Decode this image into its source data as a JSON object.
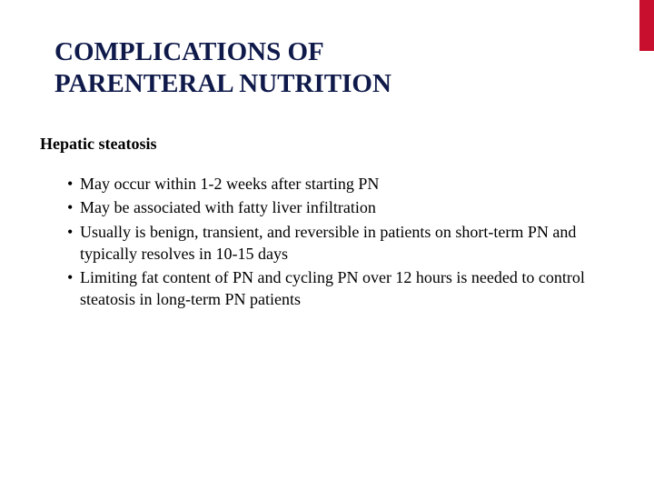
{
  "title_line1": "COMPLICATIONS OF",
  "title_line2": "PARENTERAL NUTRITION",
  "title_color": "#0f1a4a",
  "title_fontsize": 29,
  "subtitle": "Hepatic steatosis",
  "subtitle_fontsize": 18,
  "body_fontsize": 18,
  "accent_bar_color": "#c8102e",
  "background_color": "#ffffff",
  "body_text_color": "#000000",
  "bullets": [
    "May occur within 1-2 weeks after starting PN",
    "May be associated with fatty liver infiltration",
    "Usually is benign, transient, and reversible in patients on short-term PN and typically resolves in 10-15 days",
    "Limiting fat content of PN and cycling PN over 12 hours is needed to control steatosis in long-term PN patients"
  ]
}
